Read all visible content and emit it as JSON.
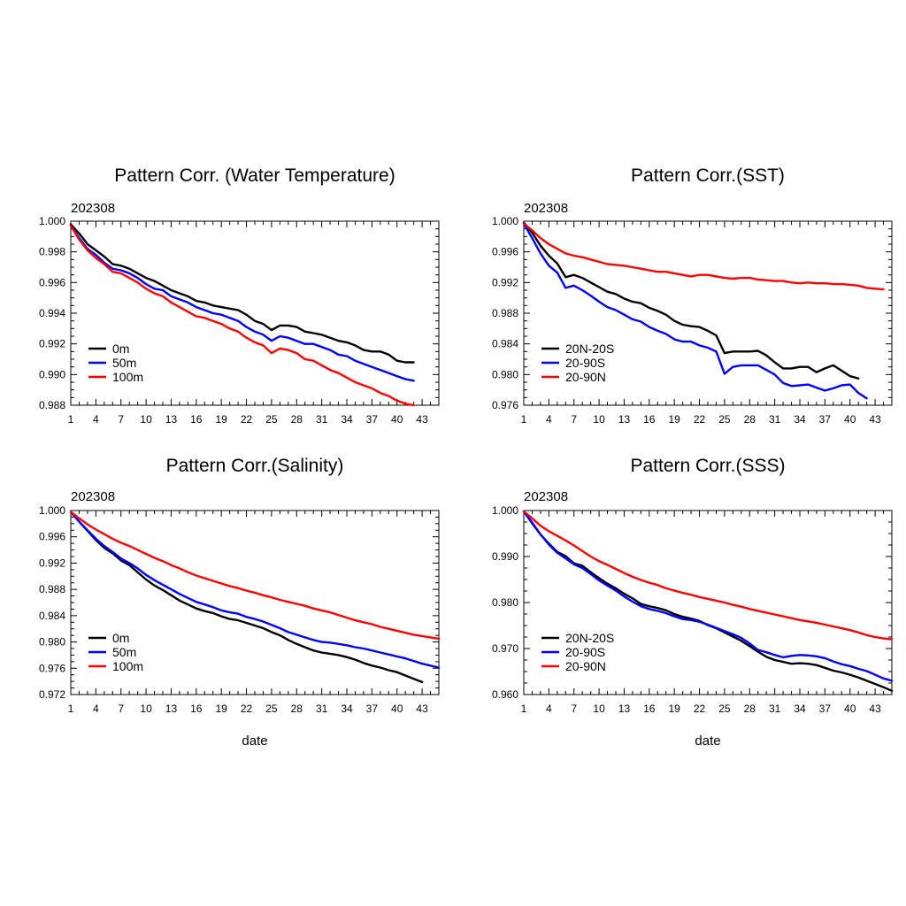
{
  "chart_data": [
    {
      "type": "line",
      "title": "Pattern Corr. (Water Temperature)",
      "subtitle": "202308",
      "xlabel": "",
      "ylabel": "",
      "xlim": [
        1,
        45
      ],
      "ylim": [
        0.988,
        1.0
      ],
      "x_ticks": [
        1,
        4,
        7,
        10,
        13,
        16,
        19,
        22,
        25,
        28,
        31,
        34,
        37,
        40,
        43
      ],
      "y_ticks": [
        0.988,
        0.99,
        0.992,
        0.994,
        0.996,
        0.998,
        1.0
      ],
      "y_tick_labels": [
        "0.988",
        "0.990",
        "0.992",
        "0.994",
        "0.996",
        "0.998",
        "1.000"
      ],
      "legend_position": "bottom-left",
      "series": [
        {
          "name": "0m",
          "color": "#000000",
          "values": [
            0.9998,
            0.9992,
            0.9985,
            0.9981,
            0.9977,
            0.9972,
            0.9971,
            0.9969,
            0.9966,
            0.9963,
            0.9961,
            0.9958,
            0.9955,
            0.9953,
            0.9951,
            0.9948,
            0.9947,
            0.9945,
            0.9944,
            0.9943,
            0.9942,
            0.9939,
            0.9935,
            0.9933,
            0.9929,
            0.9932,
            0.9932,
            0.9931,
            0.9928,
            0.9927,
            0.9926,
            0.9924,
            0.9922,
            0.9921,
            0.9919,
            0.9916,
            0.9915,
            0.9915,
            0.9913,
            0.9909,
            0.9908,
            0.9908
          ]
        },
        {
          "name": "50m",
          "color": "#0000ff",
          "values": [
            0.9997,
            0.9989,
            0.9982,
            0.9978,
            0.9973,
            0.9969,
            0.9968,
            0.9966,
            0.9963,
            0.9959,
            0.9956,
            0.9955,
            0.9951,
            0.9949,
            0.9947,
            0.9944,
            0.9942,
            0.994,
            0.9939,
            0.9937,
            0.9935,
            0.9931,
            0.9928,
            0.9926,
            0.9922,
            0.9925,
            0.9924,
            0.9922,
            0.992,
            0.992,
            0.9918,
            0.9916,
            0.9913,
            0.9912,
            0.9909,
            0.9907,
            0.9905,
            0.9903,
            0.9901,
            0.9899,
            0.9897,
            0.9896
          ]
        },
        {
          "name": "100m",
          "color": "#ff0000",
          "values": [
            0.9997,
            0.9988,
            0.9981,
            0.9976,
            0.9972,
            0.9967,
            0.9966,
            0.9963,
            0.996,
            0.9956,
            0.9953,
            0.9951,
            0.9947,
            0.9944,
            0.9941,
            0.9938,
            0.9937,
            0.9935,
            0.9933,
            0.993,
            0.9928,
            0.9924,
            0.9921,
            0.9919,
            0.9914,
            0.9917,
            0.9916,
            0.9914,
            0.991,
            0.9909,
            0.9906,
            0.9903,
            0.9901,
            0.9898,
            0.9895,
            0.9893,
            0.9891,
            0.9888,
            0.9886,
            0.9883,
            0.9881,
            0.988
          ]
        }
      ]
    },
    {
      "type": "line",
      "title": "Pattern Corr.(SST)",
      "subtitle": "202308",
      "xlabel": "",
      "ylabel": "",
      "xlim": [
        1,
        45
      ],
      "ylim": [
        0.976,
        1.0
      ],
      "x_ticks": [
        1,
        4,
        7,
        10,
        13,
        16,
        19,
        22,
        25,
        28,
        31,
        34,
        37,
        40,
        43
      ],
      "y_ticks": [
        0.976,
        0.98,
        0.984,
        0.988,
        0.992,
        0.996,
        1.0
      ],
      "y_tick_labels": [
        "0.976",
        "0.980",
        "0.984",
        "0.988",
        "0.992",
        "0.996",
        "1.000"
      ],
      "legend_position": "bottom-left",
      "series": [
        {
          "name": "20N-20S",
          "color": "#000000",
          "values": [
            0.9998,
            0.9985,
            0.9968,
            0.9955,
            0.9945,
            0.9927,
            0.993,
            0.9926,
            0.992,
            0.9914,
            0.9908,
            0.9905,
            0.9899,
            0.9895,
            0.9893,
            0.9887,
            0.9883,
            0.9878,
            0.987,
            0.9865,
            0.9863,
            0.9862,
            0.9857,
            0.9851,
            0.9828,
            0.983,
            0.983,
            0.983,
            0.9831,
            0.9825,
            0.9816,
            0.9808,
            0.9808,
            0.981,
            0.981,
            0.9803,
            0.9808,
            0.9812,
            0.9805,
            0.9798,
            0.9795
          ]
        },
        {
          "name": "20-90S",
          "color": "#0000ff",
          "values": [
            0.9997,
            0.9978,
            0.9958,
            0.9942,
            0.9933,
            0.9913,
            0.9916,
            0.991,
            0.9903,
            0.9895,
            0.9888,
            0.9884,
            0.9878,
            0.9872,
            0.9869,
            0.9862,
            0.9857,
            0.9853,
            0.9846,
            0.9843,
            0.9843,
            0.9838,
            0.9835,
            0.983,
            0.9801,
            0.981,
            0.9812,
            0.9812,
            0.9812,
            0.9806,
            0.98,
            0.9789,
            0.9785,
            0.9786,
            0.9787,
            0.9783,
            0.9779,
            0.9782,
            0.9786,
            0.9787,
            0.9776,
            0.9769
          ]
        },
        {
          "name": "20-90N",
          "color": "#ff0000",
          "values": [
            0.9997,
            0.9988,
            0.9978,
            0.997,
            0.9964,
            0.9958,
            0.9955,
            0.9953,
            0.995,
            0.9947,
            0.9944,
            0.9943,
            0.9942,
            0.994,
            0.9938,
            0.9936,
            0.9934,
            0.9934,
            0.9932,
            0.993,
            0.9928,
            0.993,
            0.993,
            0.9928,
            0.9926,
            0.9925,
            0.9926,
            0.9926,
            0.9924,
            0.9923,
            0.9922,
            0.9922,
            0.992,
            0.9919,
            0.992,
            0.9919,
            0.9919,
            0.9918,
            0.9918,
            0.9917,
            0.9916,
            0.9913,
            0.9912,
            0.9911
          ]
        }
      ]
    },
    {
      "type": "line",
      "title": "Pattern Corr.(Salinity)",
      "subtitle": "202308",
      "xlabel": "date",
      "ylabel": "",
      "xlim": [
        1,
        45
      ],
      "ylim": [
        0.972,
        1.0
      ],
      "x_ticks": [
        1,
        4,
        7,
        10,
        13,
        16,
        19,
        22,
        25,
        28,
        31,
        34,
        37,
        40,
        43
      ],
      "y_ticks": [
        0.972,
        0.976,
        0.98,
        0.984,
        0.988,
        0.992,
        0.996,
        1.0
      ],
      "y_tick_labels": [
        "0.972",
        "0.976",
        "0.980",
        "0.984",
        "0.988",
        "0.992",
        "0.996",
        "1.000"
      ],
      "legend_position": "bottom-left",
      "series": [
        {
          "name": "0m",
          "color": "#000000",
          "values": [
            0.9998,
            0.9983,
            0.9969,
            0.9955,
            0.9943,
            0.9935,
            0.9924,
            0.9917,
            0.9906,
            0.9895,
            0.9886,
            0.9879,
            0.9871,
            0.9863,
            0.9857,
            0.9851,
            0.9847,
            0.9844,
            0.9839,
            0.9835,
            0.9833,
            0.9829,
            0.9825,
            0.9821,
            0.9815,
            0.981,
            0.9803,
            0.9797,
            0.9792,
            0.9787,
            0.9784,
            0.9782,
            0.978,
            0.9777,
            0.9773,
            0.9768,
            0.9764,
            0.9761,
            0.9757,
            0.9754,
            0.9749,
            0.9744,
            0.9739
          ]
        },
        {
          "name": "50m",
          "color": "#0000ff",
          "values": [
            0.9998,
            0.9983,
            0.997,
            0.9957,
            0.9946,
            0.9937,
            0.9927,
            0.992,
            0.9912,
            0.9902,
            0.9894,
            0.9887,
            0.988,
            0.9873,
            0.9867,
            0.9861,
            0.9857,
            0.9853,
            0.9848,
            0.9845,
            0.9843,
            0.9838,
            0.9835,
            0.9831,
            0.9826,
            0.9821,
            0.9815,
            0.9811,
            0.9807,
            0.9803,
            0.98,
            0.9799,
            0.9797,
            0.9795,
            0.9792,
            0.979,
            0.9787,
            0.9784,
            0.9781,
            0.9778,
            0.9775,
            0.9771,
            0.9767,
            0.9764,
            0.9761
          ]
        },
        {
          "name": "100m",
          "color": "#ff0000",
          "values": [
            0.9998,
            0.9988,
            0.9979,
            0.9971,
            0.9964,
            0.9957,
            0.9951,
            0.9946,
            0.994,
            0.9934,
            0.9928,
            0.9923,
            0.9917,
            0.9912,
            0.9906,
            0.9901,
            0.9897,
            0.9893,
            0.9889,
            0.9885,
            0.9882,
            0.9878,
            0.9875,
            0.9871,
            0.9868,
            0.9864,
            0.9861,
            0.9858,
            0.9855,
            0.9851,
            0.9848,
            0.9845,
            0.9841,
            0.9837,
            0.9833,
            0.983,
            0.9827,
            0.9823,
            0.982,
            0.9817,
            0.9814,
            0.9811,
            0.9809,
            0.9807,
            0.9805
          ]
        }
      ]
    },
    {
      "type": "line",
      "title": "Pattern Corr.(SSS)",
      "subtitle": "202308",
      "xlabel": "date",
      "ylabel": "",
      "xlim": [
        1,
        45
      ],
      "ylim": [
        0.96,
        1.0
      ],
      "x_ticks": [
        1,
        4,
        7,
        10,
        13,
        16,
        19,
        22,
        25,
        28,
        31,
        34,
        37,
        40,
        43
      ],
      "y_ticks": [
        0.96,
        0.97,
        0.98,
        0.99,
        1.0
      ],
      "y_tick_labels": [
        "0.960",
        "0.970",
        "0.980",
        "0.990",
        "1.000"
      ],
      "legend_position": "bottom-left",
      "series": [
        {
          "name": "20N-20S",
          "color": "#000000",
          "values": [
            0.9998,
            0.9972,
            0.9948,
            0.9928,
            0.991,
            0.9901,
            0.9885,
            0.988,
            0.9866,
            0.9853,
            0.9841,
            0.9831,
            0.9819,
            0.9809,
            0.9797,
            0.9792,
            0.9788,
            0.9783,
            0.9775,
            0.9769,
            0.9765,
            0.976,
            0.9751,
            0.9744,
            0.9735,
            0.9726,
            0.9717,
            0.9705,
            0.9693,
            0.9682,
            0.9675,
            0.9671,
            0.9667,
            0.9668,
            0.9667,
            0.9664,
            0.9658,
            0.9652,
            0.9648,
            0.9643,
            0.9637,
            0.963,
            0.9623,
            0.9616,
            0.9608
          ]
        },
        {
          "name": "20-90S",
          "color": "#0000ff",
          "values": [
            0.9998,
            0.9974,
            0.9948,
            0.9926,
            0.9908,
            0.9896,
            0.9883,
            0.9875,
            0.9862,
            0.9848,
            0.9837,
            0.9826,
            0.9813,
            0.9802,
            0.9792,
            0.9786,
            0.9782,
            0.9777,
            0.977,
            0.9764,
            0.9762,
            0.9758,
            0.9752,
            0.9745,
            0.9738,
            0.9731,
            0.9723,
            0.9711,
            0.9697,
            0.9692,
            0.9686,
            0.9681,
            0.9684,
            0.9686,
            0.9685,
            0.9683,
            0.9679,
            0.9672,
            0.9666,
            0.9662,
            0.9656,
            0.9651,
            0.9643,
            0.9635,
            0.963
          ]
        },
        {
          "name": "20-90N",
          "color": "#ff0000",
          "values": [
            0.9998,
            0.9983,
            0.9967,
            0.9955,
            0.9945,
            0.9935,
            0.9924,
            0.9912,
            0.99,
            0.989,
            0.9882,
            0.9873,
            0.9864,
            0.9856,
            0.9849,
            0.9843,
            0.9838,
            0.9831,
            0.9826,
            0.9821,
            0.9817,
            0.9812,
            0.9808,
            0.9804,
            0.98,
            0.9795,
            0.9791,
            0.9786,
            0.9782,
            0.9778,
            0.9774,
            0.977,
            0.9766,
            0.9762,
            0.9759,
            0.9756,
            0.9752,
            0.9748,
            0.9744,
            0.974,
            0.9735,
            0.9729,
            0.9725,
            0.9722,
            0.972
          ]
        }
      ]
    }
  ]
}
